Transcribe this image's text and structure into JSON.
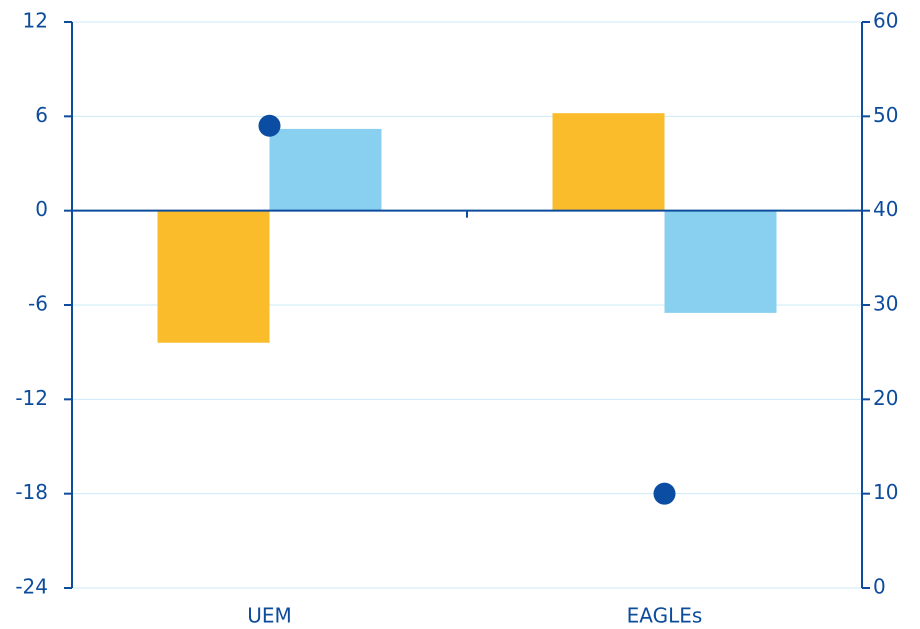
{
  "chart_data": {
    "type": "bar",
    "categories": [
      "UEM",
      "EAGLEs"
    ],
    "series": [
      {
        "color": "#fbbc2c",
        "values": [
          -8.4,
          6.2
        ]
      },
      {
        "color": "#89d0f0",
        "values": [
          5.2,
          -6.5
        ]
      },
      {
        "color": "#0b4da2",
        "values": [
          49,
          10
        ],
        "axis": "y2",
        "type": "scatter"
      }
    ],
    "ylim": [
      -24,
      12
    ],
    "yticks": [
      -24,
      -18,
      -12,
      -6,
      0,
      6,
      12
    ],
    "y2lim": [
      0,
      60
    ],
    "y2ticks": [
      0,
      10,
      20,
      30,
      40,
      50,
      60
    ],
    "grid": true
  }
}
